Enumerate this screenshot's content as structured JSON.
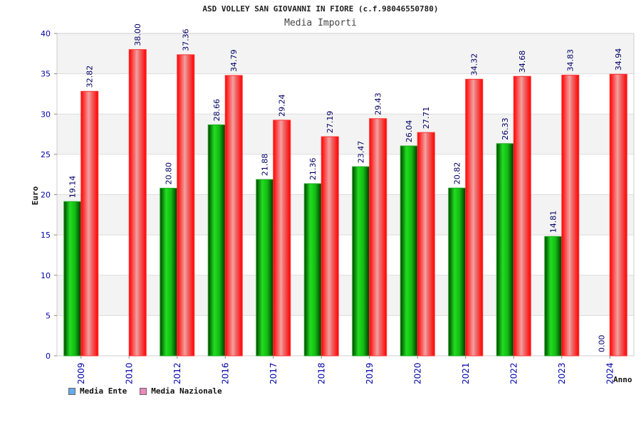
{
  "colors": {
    "ente": "#11bb22",
    "nazionale": "#ee1111",
    "legend_ente": "#66aaee",
    "legend_nazionale": "#ee88bb",
    "axis_labels": "#0000aa"
  },
  "chart_data": {
    "type": "bar",
    "title": "ASD VOLLEY SAN GIOVANNI IN FIORE (c.f.98046550780)",
    "subtitle": "Media Importi",
    "xlabel": "Anno",
    "ylabel": "Euro",
    "ylim": [
      0,
      40
    ],
    "yticks": [
      0,
      5,
      10,
      15,
      20,
      25,
      30,
      35,
      40
    ],
    "grid": true,
    "legend_position": "bottom-left",
    "categories": [
      "2009",
      "2010",
      "2012",
      "2016",
      "2017",
      "2018",
      "2019",
      "2020",
      "2021",
      "2022",
      "2023",
      "2024"
    ],
    "series": [
      {
        "name": "Media Ente",
        "values": [
          19.14,
          null,
          20.8,
          28.66,
          21.88,
          21.36,
          23.47,
          26.04,
          20.82,
          26.33,
          14.81,
          0.0
        ],
        "labels": [
          "19.14",
          "",
          "20.80",
          "28.66",
          "21.88",
          "21.36",
          "23.47",
          "26.04",
          "20.82",
          "26.33",
          "14.81",
          "0.00"
        ]
      },
      {
        "name": "Media Nazionale",
        "values": [
          32.82,
          38.0,
          37.36,
          34.79,
          29.24,
          27.19,
          29.43,
          27.71,
          34.32,
          34.68,
          34.83,
          34.94
        ],
        "labels": [
          "32.82",
          "38.00",
          "37.36",
          "34.79",
          "29.24",
          "27.19",
          "29.43",
          "27.71",
          "34.32",
          "34.68",
          "34.83",
          "34.94"
        ]
      }
    ]
  }
}
